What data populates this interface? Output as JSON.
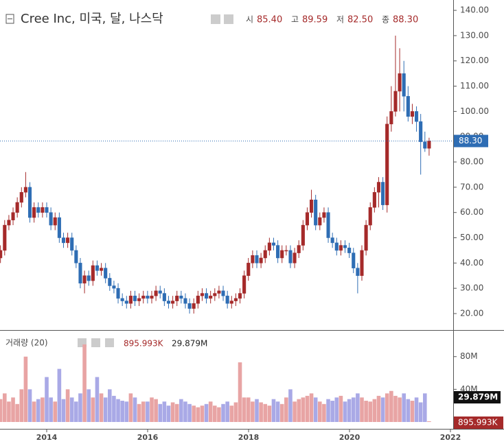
{
  "chart_data": {
    "type": "candlestick",
    "title": "Cree Inc, 미국, 달, 나스닥",
    "ohlc_legend": [
      {
        "key": "시",
        "value": "85.40"
      },
      {
        "key": "고",
        "value": "89.59"
      },
      {
        "key": "저",
        "value": "82.50"
      },
      {
        "key": "종",
        "value": "88.30"
      }
    ],
    "open": [
      42,
      45,
      55,
      57,
      60,
      64,
      68,
      70,
      58,
      62,
      60,
      62,
      60,
      55,
      58,
      50,
      48,
      50,
      45,
      40,
      32,
      35,
      33,
      39,
      37,
      38,
      34,
      31,
      30,
      26,
      25,
      24,
      27,
      25,
      26,
      27,
      26,
      27,
      29,
      28,
      25,
      24,
      25,
      27,
      26,
      24,
      22,
      24,
      27,
      28,
      26,
      27,
      28,
      29,
      27,
      24,
      25,
      26,
      28,
      35,
      40,
      43,
      40,
      42,
      45,
      48,
      47,
      42,
      45,
      45,
      40,
      44,
      47,
      55,
      60,
      65,
      55,
      58,
      60,
      50,
      48,
      45,
      47,
      46,
      44,
      38,
      35,
      45,
      55,
      62,
      68,
      72,
      63,
      95,
      100,
      108,
      115,
      106,
      98,
      100,
      96,
      88,
      85.4
    ],
    "high": [
      47,
      57,
      59,
      62,
      66,
      70,
      76,
      72,
      64,
      64,
      64,
      64,
      62,
      60,
      60,
      52,
      52,
      52,
      47,
      42,
      37,
      37,
      41,
      41,
      40,
      40,
      36,
      33,
      32,
      28,
      27,
      29,
      29,
      28,
      29,
      29,
      29,
      31,
      31,
      30,
      27,
      27,
      29,
      29,
      28,
      26,
      26,
      29,
      30,
      30,
      29,
      30,
      31,
      31,
      29,
      27,
      28,
      30,
      37,
      42,
      45,
      45,
      44,
      47,
      50,
      50,
      49,
      47,
      47,
      47,
      46,
      49,
      57,
      62,
      69,
      67,
      60,
      62,
      62,
      52,
      50,
      49,
      49,
      48,
      46,
      40,
      47,
      57,
      64,
      70,
      74,
      74,
      98,
      110,
      130,
      125,
      120,
      110,
      103,
      102,
      99,
      92,
      89.59
    ],
    "low": [
      40,
      43,
      53,
      55,
      58,
      62,
      66,
      56,
      56,
      58,
      58,
      58,
      53,
      53,
      48,
      46,
      46,
      43,
      38,
      30,
      28,
      31,
      31,
      35,
      35,
      32,
      29,
      28,
      24,
      23,
      22,
      22,
      23,
      23,
      24,
      24,
      24,
      25,
      26,
      23,
      22,
      22,
      23,
      24,
      22,
      20,
      20,
      22,
      25,
      24,
      24,
      25,
      26,
      25,
      22,
      22,
      23,
      24,
      26,
      33,
      38,
      38,
      38,
      40,
      43,
      45,
      40,
      40,
      43,
      38,
      38,
      42,
      45,
      53,
      58,
      53,
      53,
      56,
      48,
      46,
      43,
      43,
      44,
      42,
      36,
      28,
      33,
      43,
      53,
      60,
      62,
      61,
      60,
      92,
      98,
      100,
      100,
      96,
      95,
      92,
      75,
      84,
      82.5
    ],
    "close": [
      45,
      55,
      57,
      60,
      64,
      68,
      70,
      58,
      62,
      60,
      62,
      60,
      55,
      58,
      50,
      48,
      50,
      45,
      40,
      32,
      35,
      33,
      39,
      37,
      38,
      34,
      31,
      30,
      26,
      25,
      24,
      27,
      25,
      26,
      27,
      26,
      27,
      29,
      28,
      25,
      24,
      25,
      27,
      26,
      24,
      22,
      24,
      27,
      28,
      26,
      27,
      28,
      29,
      27,
      24,
      25,
      26,
      28,
      35,
      40,
      43,
      40,
      42,
      45,
      48,
      47,
      42,
      45,
      45,
      40,
      44,
      47,
      55,
      60,
      65,
      55,
      58,
      60,
      50,
      48,
      45,
      47,
      46,
      44,
      38,
      35,
      45,
      55,
      62,
      68,
      72,
      63,
      95,
      100,
      108,
      115,
      106,
      98,
      100,
      96,
      88,
      85.4,
      88.3
    ],
    "up_color": "#a52a2a",
    "down_color": "#2e6db4",
    "ylim": [
      13.75,
      144.1
    ],
    "yticks": [
      {
        "value": 20,
        "label": "20.00"
      },
      {
        "value": 30,
        "label": "30.00"
      },
      {
        "value": 40,
        "label": "40.00"
      },
      {
        "value": 50,
        "label": "50.00"
      },
      {
        "value": 60,
        "label": "60.00"
      },
      {
        "value": 70,
        "label": "70.00"
      },
      {
        "value": 80,
        "label": "80.00"
      },
      {
        "value": 90,
        "label": "90.00"
      },
      {
        "value": 100,
        "label": "100.00"
      },
      {
        "value": 110,
        "label": "110.00"
      },
      {
        "value": 120,
        "label": "120.00"
      },
      {
        "value": 130,
        "label": "130.00"
      },
      {
        "value": 140,
        "label": "140.00"
      }
    ],
    "last_price": {
      "value": 88.3,
      "label": "88.30"
    },
    "xticks": [
      2014,
      2016,
      2018,
      2020,
      2022
    ],
    "volume": {
      "title": "거래량 (20)",
      "label": "895.993K",
      "ma_label": "29.879M",
      "values": [
        28000000,
        35000000,
        25000000,
        30000000,
        22000000,
        40000000,
        80000000,
        40000000,
        25000000,
        28000000,
        30000000,
        55000000,
        30000000,
        25000000,
        65000000,
        28000000,
        40000000,
        30000000,
        25000000,
        35000000,
        95000000,
        40000000,
        30000000,
        55000000,
        35000000,
        30000000,
        40000000,
        32000000,
        28000000,
        26000000,
        25000000,
        35000000,
        30000000,
        22000000,
        25000000,
        25000000,
        30000000,
        28000000,
        22000000,
        25000000,
        20000000,
        24000000,
        22000000,
        28000000,
        25000000,
        22000000,
        20000000,
        18000000,
        20000000,
        22000000,
        25000000,
        20000000,
        18000000,
        22000000,
        25000000,
        20000000,
        24000000,
        73000000,
        30000000,
        30000000,
        25000000,
        28000000,
        24000000,
        22000000,
        20000000,
        28000000,
        25000000,
        22000000,
        30000000,
        40000000,
        25000000,
        28000000,
        30000000,
        32000000,
        35000000,
        30000000,
        25000000,
        22000000,
        28000000,
        26000000,
        30000000,
        32000000,
        25000000,
        28000000,
        30000000,
        35000000,
        30000000,
        26000000,
        25000000,
        28000000,
        32000000,
        30000000,
        35000000,
        38000000,
        32000000,
        30000000,
        35000000,
        28000000,
        26000000,
        30000000,
        24000000,
        35000000,
        895993
      ],
      "up_color": "#e8a4a4",
      "down_color": "#a9a9e6",
      "ylim": [
        0,
        111700000
      ],
      "yticks": [
        {
          "value": 40000000,
          "label": "40M"
        },
        {
          "value": 80000000,
          "label": "80M"
        }
      ]
    }
  }
}
